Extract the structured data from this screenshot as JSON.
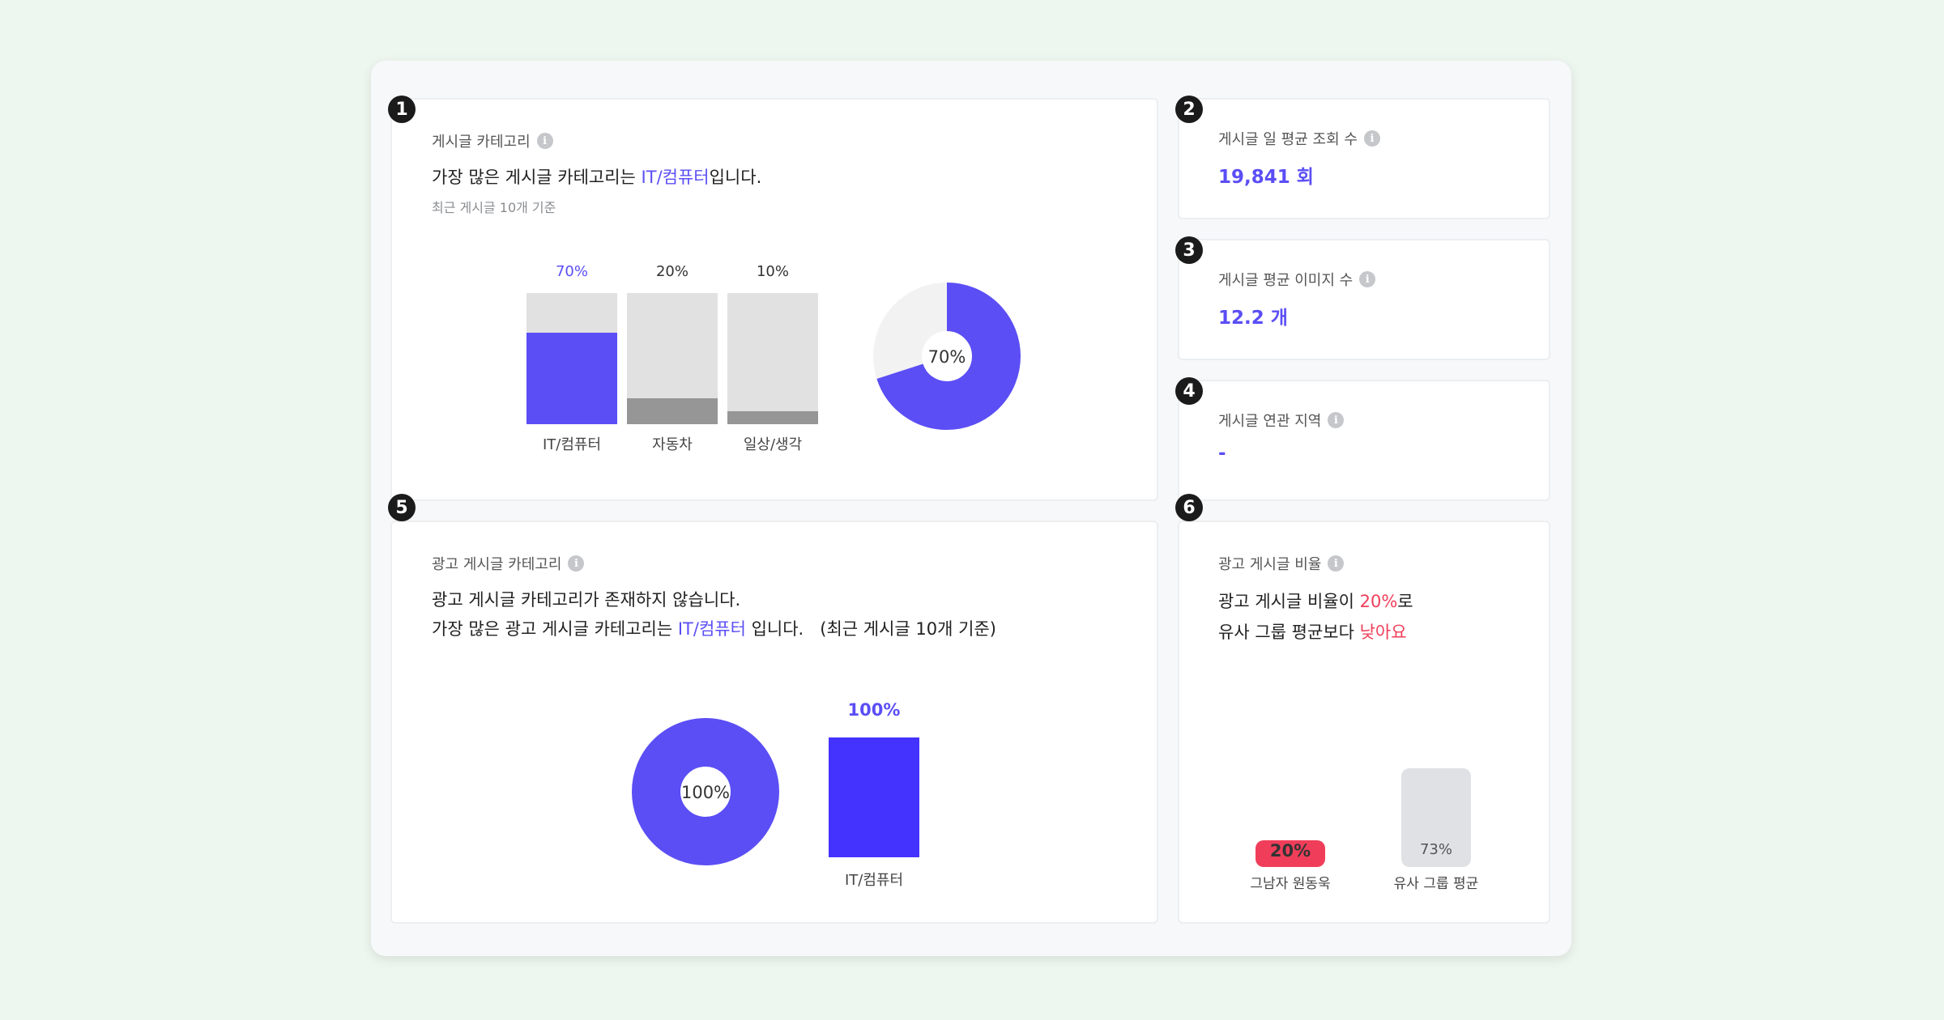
{
  "colors": {
    "accent": "#5b4ef5",
    "accent_strong": "#4433ff",
    "bar_bg": "#e1e1e1",
    "bar_gray": "#969696",
    "red": "#f03e5a",
    "donut_track": "#f2f2f2",
    "avg_bar": "#dfe1e5"
  },
  "card1": {
    "badge": "1",
    "title": "게시글 카테고리",
    "headline_pre": "가장 많은 게시글 카테고리는 ",
    "headline_accent": "IT/컴퓨터",
    "headline_post": "입니다.",
    "sub": "최근 게시글 10개 기준",
    "chart_data": {
      "type": "bar",
      "categories": [
        "IT/컴퓨터",
        "자동차",
        "일상/생각"
      ],
      "values": [
        70,
        20,
        10
      ],
      "value_labels": [
        "70%",
        "20%",
        "10%"
      ],
      "ylim": [
        0,
        100
      ]
    },
    "donut": {
      "value": 70,
      "label": "70%"
    }
  },
  "card2": {
    "badge": "2",
    "title": "게시글 일 평균 조회 수",
    "value": "19,841 회"
  },
  "card3": {
    "badge": "3",
    "title": "게시글 평균 이미지 수",
    "value": "12.2 개"
  },
  "card4": {
    "badge": "4",
    "title": "게시글 연관 지역",
    "value": "-"
  },
  "card5": {
    "badge": "5",
    "title": "광고 게시글 카테고리",
    "line1": "광고 게시글 카테고리가 존재하지 않습니다.",
    "line2_pre": "가장 많은 광고 게시글 카테고리는 ",
    "line2_accent": "IT/컴퓨터",
    "line2_post": " 입니다.   (최근 게시글 10개 기준)",
    "donut": {
      "value": 100,
      "label": "100%"
    },
    "chart_data": {
      "type": "bar",
      "categories": [
        "IT/컴퓨터"
      ],
      "values": [
        100
      ],
      "value_labels": [
        "100%"
      ],
      "ylim": [
        0,
        100
      ]
    }
  },
  "card6": {
    "badge": "6",
    "title": "광고 게시글 비율",
    "line1_pre": "광고 게시글 비율이 ",
    "line1_accent": "20%",
    "line1_post": "로",
    "line2_pre": "유사 그룹 평균보다 ",
    "line2_accent": "낮아요",
    "chart_data": {
      "type": "bar",
      "categories": [
        "그남자 원동욱",
        "유사 그룹 평균"
      ],
      "values": [
        20,
        73
      ],
      "value_labels": [
        "20%",
        "73%"
      ]
    }
  }
}
